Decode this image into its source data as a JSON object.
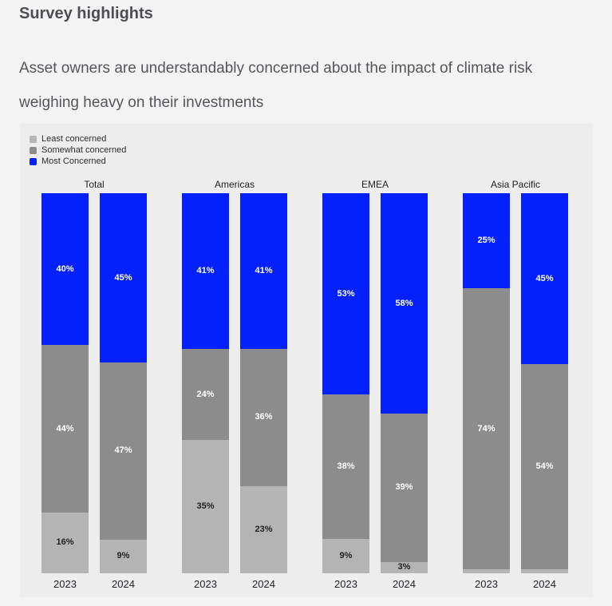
{
  "header": {
    "title": "Survey highlights",
    "subtitle": "Asset owners are understandably concerned about the impact of climate risk weighing heavy on their investments"
  },
  "colors": {
    "page_background": "#f4f3f4",
    "panel_background": "#eeedee",
    "most_concerned_blue": "#0421fc",
    "somewhat_concerned_gray": "#8c8c8c",
    "least_concerned_gray": "#b4b4b5",
    "label_on_dark": "#ffffff",
    "label_on_light": "#1f1f1f"
  },
  "chart_data": {
    "type": "bar",
    "stacked": true,
    "orientation": "vertical",
    "unit": "%",
    "ylim": [
      0,
      100
    ],
    "grid": false,
    "legend_position": "top-left",
    "categories": [
      "2023",
      "2024"
    ],
    "legend": [
      {
        "name": "Least concerned",
        "color": "#b4b4b5",
        "text_color": "#1f1f1f"
      },
      {
        "name": "Somewhat concerned",
        "color": "#8c8c8c",
        "text_color": "#ffffff"
      },
      {
        "name": "Most Concerned",
        "color": "#0421fc",
        "text_color": "#ffffff"
      }
    ],
    "stack_order_top_to_bottom": [
      "Most Concerned",
      "Somewhat concerned",
      "Least concerned"
    ],
    "groups": [
      {
        "title": "Total",
        "bars": [
          {
            "year": "2023",
            "segments": [
              {
                "name": "Most Concerned",
                "value": 40,
                "label": "40%"
              },
              {
                "name": "Somewhat concerned",
                "value": 44,
                "label": "44%"
              },
              {
                "name": "Least concerned",
                "value": 16,
                "label": "16%"
              }
            ]
          },
          {
            "year": "2024",
            "segments": [
              {
                "name": "Most Concerned",
                "value": 45,
                "label": "45%"
              },
              {
                "name": "Somewhat concerned",
                "value": 47,
                "label": "47%"
              },
              {
                "name": "Least concerned",
                "value": 9,
                "label": "9%"
              }
            ]
          }
        ]
      },
      {
        "title": "Americas",
        "bars": [
          {
            "year": "2023",
            "segments": [
              {
                "name": "Most Concerned",
                "value": 41,
                "label": "41%"
              },
              {
                "name": "Somewhat concerned",
                "value": 24,
                "label": "24%"
              },
              {
                "name": "Least concerned",
                "value": 35,
                "label": "35%"
              }
            ]
          },
          {
            "year": "2024",
            "segments": [
              {
                "name": "Most Concerned",
                "value": 41,
                "label": "41%"
              },
              {
                "name": "Somewhat concerned",
                "value": 36,
                "label": "36%"
              },
              {
                "name": "Least concerned",
                "value": 23,
                "label": "23%"
              }
            ]
          }
        ]
      },
      {
        "title": "EMEA",
        "bars": [
          {
            "year": "2023",
            "segments": [
              {
                "name": "Most Concerned",
                "value": 53,
                "label": "53%"
              },
              {
                "name": "Somewhat concerned",
                "value": 38,
                "label": "38%"
              },
              {
                "name": "Least concerned",
                "value": 9,
                "label": "9%"
              }
            ]
          },
          {
            "year": "2024",
            "segments": [
              {
                "name": "Most Concerned",
                "value": 58,
                "label": "58%"
              },
              {
                "name": "Somewhat concerned",
                "value": 39,
                "label": "39%"
              },
              {
                "name": "Least concerned",
                "value": 3,
                "label": "3%"
              }
            ]
          }
        ]
      },
      {
        "title": "Asia Pacific",
        "bars": [
          {
            "year": "2023",
            "segments": [
              {
                "name": "Most Concerned",
                "value": 25,
                "label": "25%"
              },
              {
                "name": "Somewhat concerned",
                "value": 74,
                "label": "74%"
              },
              {
                "name": "Least concerned",
                "value": 1,
                "label": ""
              }
            ]
          },
          {
            "year": "2024",
            "segments": [
              {
                "name": "Most Concerned",
                "value": 45,
                "label": "45%"
              },
              {
                "name": "Somewhat concerned",
                "value": 54,
                "label": "54%"
              },
              {
                "name": "Least concerned",
                "value": 1,
                "label": ""
              }
            ]
          }
        ]
      }
    ]
  }
}
